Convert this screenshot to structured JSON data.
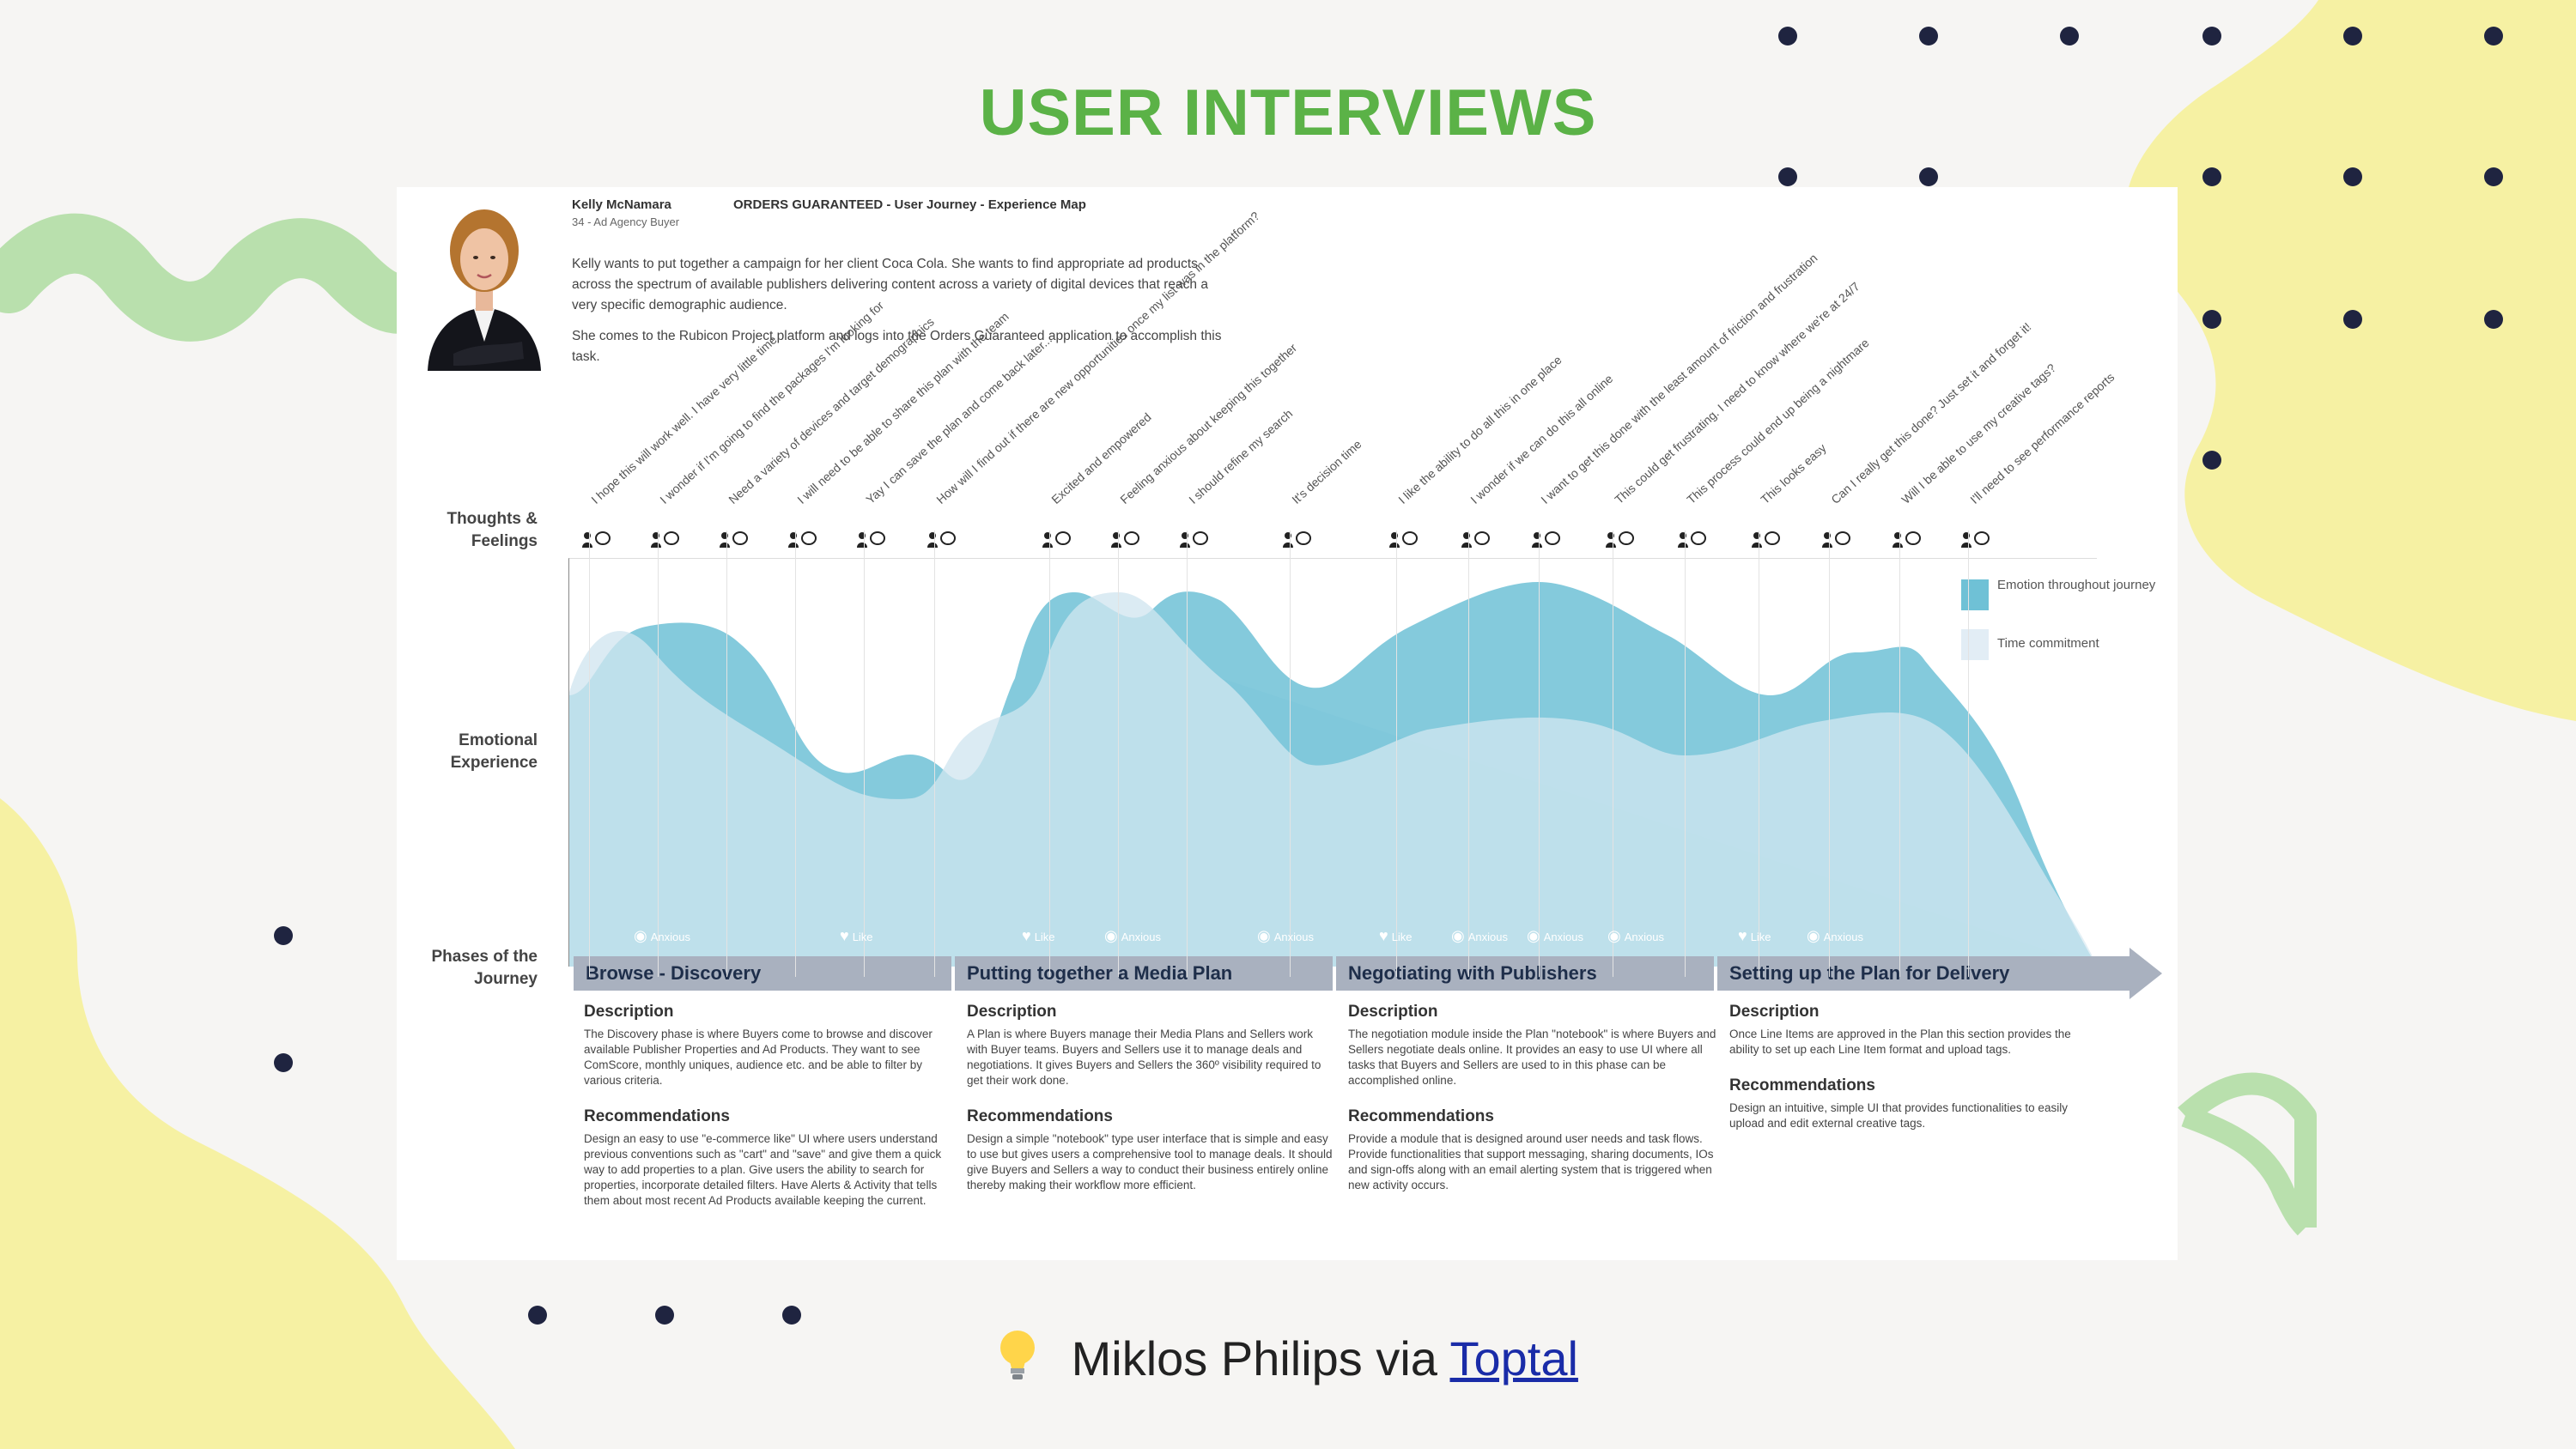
{
  "title": "USER INTERVIEWS",
  "colors": {
    "title_green": "#5bb247",
    "emotion_fill": "#6fc1d6",
    "time_fill": "#e2edf5",
    "phase_bar": "#a9b1bf",
    "blob_yellow": "#f6f1a3",
    "blob_green": "#b9e0ad",
    "dot_navy": "#1f2440"
  },
  "card": {
    "name": "Kelly McNamara",
    "role": "34 - Ad Agency Buyer",
    "map_title": "ORDERS GUARANTEED - User Journey - Experience Map",
    "intro_1": "Kelly wants to put together a campaign for her client Coca Cola. She wants to find appropriate ad products across the spectrum of available publishers delivering content across a variety of digital devices that reach a very specific demographic audience.",
    "intro_2": "She comes to the Rubicon Project platform and logs into the Orders Guaranteed application to accomplish this task.",
    "row_labels": {
      "thoughts": "Thoughts & Feelings",
      "emotional": "Emotional Experience",
      "phases": "Phases of the Journey"
    },
    "thoughts": [
      "I hope this will work well. I have very little time.",
      "I wonder if I'm going to find the packages I'm looking for",
      "Need a variety of devices and target demographics",
      "I will need to be able to share this plan with the team",
      "Yay I can save the plan and come back later...",
      "How will I find out if there are new opportunities once my list was in the platform?",
      "Excited and empowered",
      "Feeling anxious about keeping this together",
      "I should refine my search",
      "It's decision time",
      "I like the ability to do all this in one place",
      "I wonder if we can do this all online",
      "I want to get this done with the least amount of friction and frustration",
      "This could get frustrating. I need to know where we're at 24/7",
      "This process could end up being a nightmare",
      "This looks easy",
      "Can I really get this done? Just set it and forget it!",
      "Will I be able to use my creative tags?",
      "I'll need to see performance reports"
    ],
    "legend": {
      "emotion": "Emotion throughout journey",
      "time": "Time commitment"
    },
    "tags": [
      {
        "label": "Anxious",
        "icon": "eye-icon"
      },
      {
        "label": "Like",
        "icon": "heart-icon"
      },
      {
        "label": "Like",
        "icon": "heart-icon"
      },
      {
        "label": "Anxious",
        "icon": "eye-icon"
      },
      {
        "label": "Anxious",
        "icon": "eye-icon"
      },
      {
        "label": "Like",
        "icon": "heart-icon"
      },
      {
        "label": "Anxious",
        "icon": "eye-icon"
      },
      {
        "label": "Anxious",
        "icon": "eye-icon"
      },
      {
        "label": "Anxious",
        "icon": "eye-icon"
      },
      {
        "label": "Like",
        "icon": "heart-icon"
      },
      {
        "label": "Anxious",
        "icon": "eye-icon"
      }
    ],
    "phases": [
      {
        "name": "Browse - Discovery",
        "description_label": "Description",
        "description": "The Discovery phase is where Buyers come to browse and discover available Publisher Properties and Ad Products. They want to see ComScore, monthly uniques, audience etc. and be able to filter by various criteria.",
        "recommendations_label": "Recommendations",
        "recommendations": "Design an easy to use \"e-commerce like\" UI where users understand previous conventions such as \"cart\" and \"save\" and give them a quick way to add properties to a plan. Give users the ability to search for properties, incorporate detailed filters. Have Alerts & Activity that tells them about most recent Ad Products available keeping the current."
      },
      {
        "name": "Putting together a Media Plan",
        "description_label": "Description",
        "description": "A Plan is where Buyers manage their Media Plans and Sellers work with Buyer teams. Buyers and Sellers use it to manage deals and negotiations. It gives Buyers and Sellers the 360º visibility required to get their work done.",
        "recommendations_label": "Recommendations",
        "recommendations": "Design a simple \"notebook\" type user interface that is simple and easy to use but gives users a comprehensive tool to manage deals. It should give Buyers and Sellers a way to conduct their business entirely online thereby making their workflow more efficient."
      },
      {
        "name": "Negotiating with Publishers",
        "description_label": "Description",
        "description": "The negotiation module inside the Plan \"notebook\" is where Buyers and Sellers negotiate deals online. It provides an easy to use UI where all tasks that Buyers and Sellers are used to in this phase can be accomplished online.",
        "recommendations_label": "Recommendations",
        "recommendations": "Provide a module that is designed around user needs and task flows. Provide functionalities that support messaging, sharing documents, IOs and sign-offs along with an email alerting system that is triggered when new activity occurs."
      },
      {
        "name": "Setting up the Plan for Delivery",
        "description_label": "Description",
        "description": "Once Line Items are approved in the Plan this section provides the ability to set up each Line Item format and upload tags.",
        "recommendations_label": "Recommendations",
        "recommendations": "Design an intuitive, simple UI that provides functionalities to easily upload and edit external creative tags."
      }
    ]
  },
  "credit": {
    "bulb_icon": "lightbulb-icon",
    "text": "Miklos Philips via",
    "link": "Toptal"
  }
}
